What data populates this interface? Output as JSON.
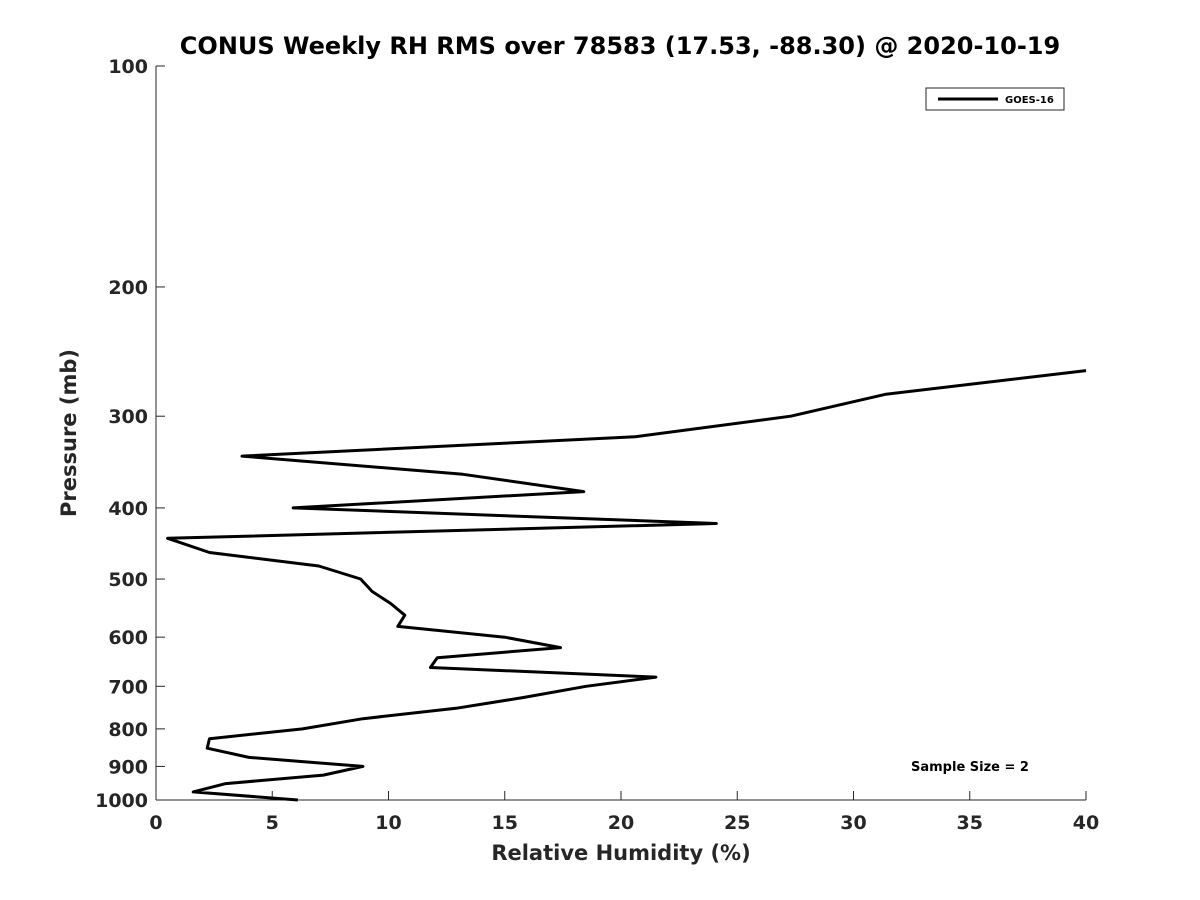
{
  "chart_data": {
    "type": "line",
    "title": "CONUS Weekly RH RMS over 78583 (17.53, -88.30) @ 2020-10-19",
    "xlabel": "Relative Humidity (%)",
    "ylabel": "Pressure (mb)",
    "xlim": [
      0,
      40
    ],
    "ylim": [
      100,
      1000
    ],
    "y_scale": "log",
    "y_reversed": true,
    "grid": false,
    "legend_position": "top-right",
    "x_ticks": [
      0,
      5,
      10,
      15,
      20,
      25,
      30,
      35,
      40
    ],
    "y_ticks": [
      100,
      200,
      300,
      400,
      500,
      600,
      700,
      800,
      900,
      1000
    ],
    "series": [
      {
        "name": "GOES-16",
        "color": "#000000",
        "points": [
          [
            6.1,
            1000
          ],
          [
            1.6,
            975
          ],
          [
            3.0,
            950
          ],
          [
            7.2,
            925
          ],
          [
            8.9,
            900
          ],
          [
            4.0,
            875
          ],
          [
            2.2,
            850
          ],
          [
            2.3,
            825
          ],
          [
            6.3,
            800
          ],
          [
            8.9,
            775
          ],
          [
            12.9,
            750
          ],
          [
            15.8,
            725
          ],
          [
            18.5,
            700
          ],
          [
            21.5,
            680
          ],
          [
            11.8,
            660
          ],
          [
            12.1,
            640
          ],
          [
            17.4,
            620
          ],
          [
            15.0,
            600
          ],
          [
            10.4,
            580
          ],
          [
            10.7,
            560
          ],
          [
            10.1,
            540
          ],
          [
            9.3,
            520
          ],
          [
            8.8,
            500
          ],
          [
            7.0,
            480
          ],
          [
            2.3,
            460
          ],
          [
            0.5,
            440
          ],
          [
            24.1,
            420
          ],
          [
            5.9,
            400
          ],
          [
            18.4,
            380
          ],
          [
            13.2,
            360
          ],
          [
            3.7,
            340
          ],
          [
            20.6,
            320
          ],
          [
            27.3,
            300
          ],
          [
            31.4,
            280
          ],
          [
            40.0,
            260
          ]
        ]
      }
    ],
    "annotations": [
      {
        "text": "Sample Size = 2"
      }
    ]
  }
}
